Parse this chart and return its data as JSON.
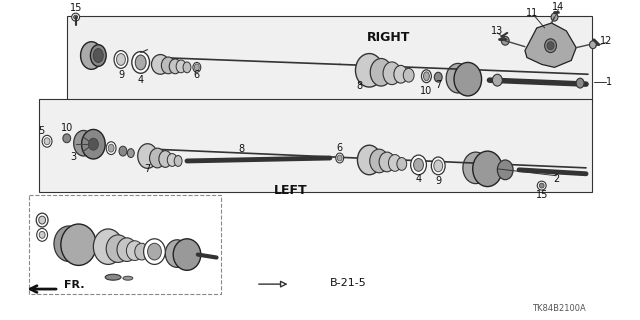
{
  "bg_color": "#ffffff",
  "diagram_code": "TK84B2100A",
  "right_label": "RIGHT",
  "left_label": "LEFT",
  "ref_label": "B-21-5",
  "fr_label": "FR.",
  "line_color": "#1a1a1a",
  "gray_dark": "#2a2a2a",
  "gray_mid": "#666666",
  "gray_light": "#aaaaaa",
  "dashed_color": "#888888"
}
